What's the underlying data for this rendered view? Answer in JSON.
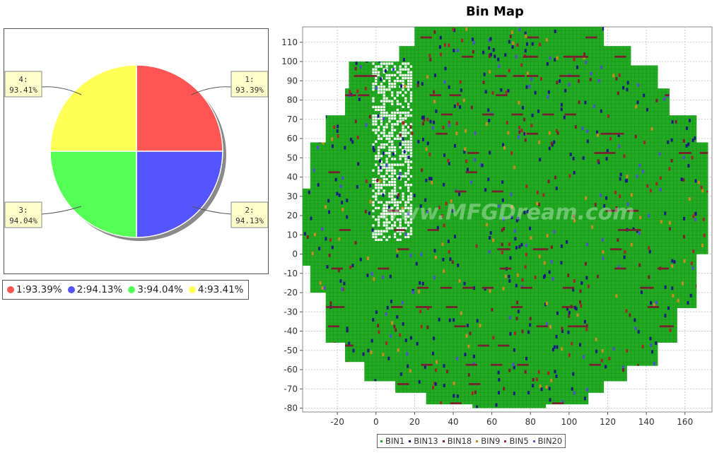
{
  "chart_data": [
    {
      "type": "pie",
      "title": "",
      "slices": [
        {
          "label": "1",
          "value": 93.39,
          "display": "1:93.39%",
          "callout_label": "1:",
          "callout_value": "93.39%",
          "color": "#ff5555"
        },
        {
          "label": "2",
          "value": 94.13,
          "display": "2:94.13%",
          "callout_label": "2:",
          "callout_value": "94.13%",
          "color": "#5555ff"
        },
        {
          "label": "3",
          "value": 94.04,
          "display": "3:94.04%",
          "callout_label": "3:",
          "callout_value": "94.04%",
          "color": "#55ff55"
        },
        {
          "label": "4",
          "value": 93.41,
          "display": "4:93.41%",
          "callout_label": "4:",
          "callout_value": "93.41%",
          "color": "#ffff55"
        }
      ],
      "legend_position": "bottom"
    },
    {
      "type": "scatter",
      "title": "Bin Map",
      "xlim": [
        -38,
        174
      ],
      "ylim": [
        -82,
        118
      ],
      "x_ticks": [
        -20,
        0,
        20,
        40,
        60,
        80,
        100,
        120,
        140,
        160
      ],
      "y_ticks": [
        -80,
        -70,
        -60,
        -50,
        -40,
        -30,
        -20,
        -10,
        0,
        10,
        20,
        30,
        40,
        50,
        60,
        70,
        80,
        90,
        100,
        110
      ],
      "watermark": "www.MFGDream.com",
      "grid": true,
      "legend_position": "bottom",
      "series": [
        {
          "name": "BIN1",
          "color": "#22aa22"
        },
        {
          "name": "BIN13",
          "color": "#1a1a80"
        },
        {
          "name": "BIN18",
          "color": "#7a2030"
        },
        {
          "name": "BIN9",
          "color": "#cc8a20"
        },
        {
          "name": "BIN5",
          "color": "#a02828"
        },
        {
          "name": "BIN20",
          "color": "#5050d0"
        }
      ]
    }
  ]
}
